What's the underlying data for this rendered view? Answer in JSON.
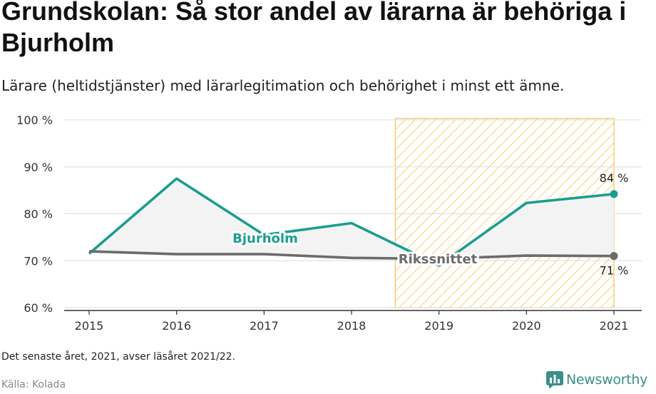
{
  "header": {
    "title": "Grundskolan: Så stor andel av lärarna är behöriga i Bjurholm",
    "subtitle": "Lärare (heltidstjänster) med lärarlegitimation och behörighet i minst ett ämne."
  },
  "footer": {
    "note": "Det senaste året, 2021, avser läsåret 2021/22.",
    "source": "Källa: Kolada",
    "brand": "Newsworthy"
  },
  "colors": {
    "bjurholm": "#1a9e8f",
    "riks": "#6b6b6b",
    "highlight": "#f5c451",
    "area": "#f3f3f3",
    "brand": "#3a8f8a"
  },
  "chart_data": {
    "type": "line",
    "x": [
      2015,
      2016,
      2017,
      2018,
      2019,
      2020,
      2021
    ],
    "xticks": [
      "2015",
      "2016",
      "2017",
      "2018",
      "2019",
      "2020",
      "2021"
    ],
    "ylim": [
      60,
      100
    ],
    "yticks": [
      60,
      70,
      80,
      90,
      100
    ],
    "ytick_labels": [
      "60 %",
      "70 %",
      "80 %",
      "90 %",
      "100 %"
    ],
    "series": [
      {
        "name": "Bjurholm",
        "values": [
          71.5,
          87.5,
          75.5,
          78.0,
          69.0,
          82.3,
          84.2
        ],
        "end_label": "84 %"
      },
      {
        "name": "Rikssnittet",
        "values": [
          72.0,
          71.4,
          71.4,
          70.6,
          70.4,
          71.1,
          71.0
        ],
        "end_label": "71 %"
      }
    ],
    "highlight_range": [
      2018.5,
      2021
    ],
    "grid": true
  }
}
